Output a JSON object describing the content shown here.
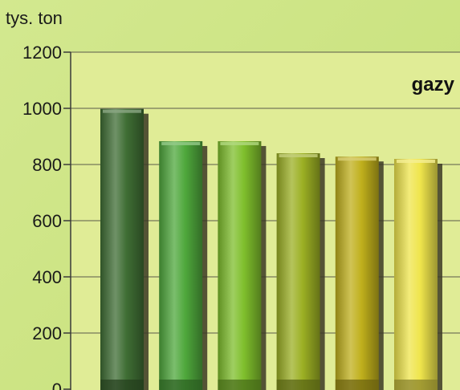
{
  "chart_data": {
    "type": "bar",
    "title": "gazy",
    "ylabel": "tys. ton",
    "xlabel": "",
    "ylim": [
      0,
      1200
    ],
    "yticks": [
      0,
      200,
      400,
      600,
      800,
      1000,
      1200
    ],
    "categories": [
      "",
      "",
      "",
      "",
      "",
      ""
    ],
    "values": [
      998,
      883,
      883,
      840,
      828,
      820
    ],
    "bar_colors": [
      "#3f6e34",
      "#4fa83c",
      "#7fbf2c",
      "#9cb024",
      "#c0b01c",
      "#efe54c"
    ],
    "grid": true,
    "plot_background": "#e0ec96",
    "page_background": "#cfe585"
  }
}
